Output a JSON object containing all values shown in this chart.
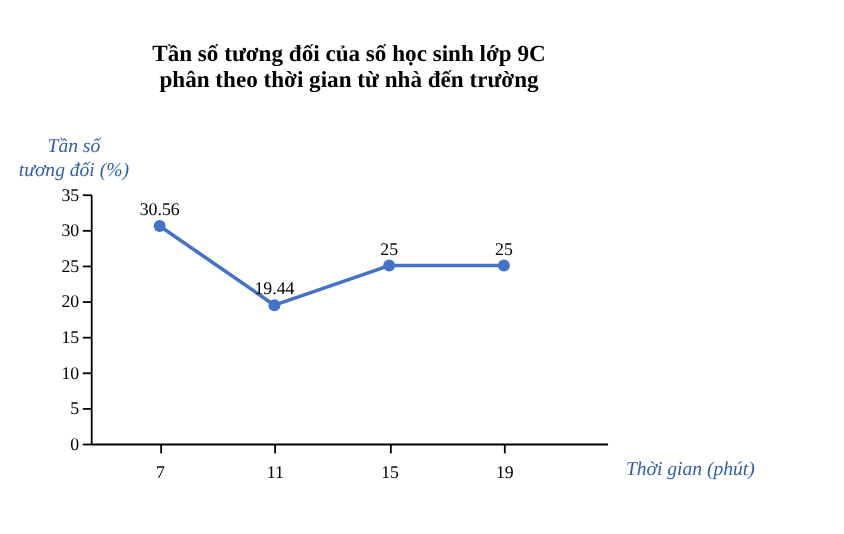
{
  "chart_data": {
    "type": "line",
    "title": "Tần số tương đối của số học sinh lớp 9C\nphân theo thời gian từ nhà đến trường",
    "xlabel": "Thời gian (phút)",
    "ylabel": "Tần số\ntương đối (%)",
    "categories": [
      "7",
      "11",
      "15",
      "19"
    ],
    "series": [
      {
        "color": "#4472c4",
        "values": [
          30.56,
          19.44,
          25,
          25
        ]
      }
    ],
    "ylim": [
      0,
      35
    ],
    "yticks": [
      0,
      5,
      10,
      15,
      20,
      25,
      30,
      35
    ],
    "data_labels": true,
    "marker": "circle",
    "grid": false,
    "legend": false
  }
}
